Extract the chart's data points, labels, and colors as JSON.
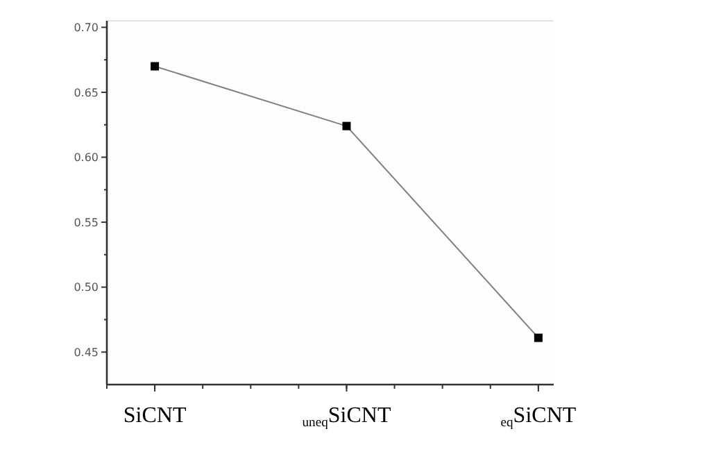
{
  "chart_data": {
    "type": "line",
    "categories": [
      "SiCNT",
      "$_{uneq}$SiCNT",
      "$_{eq}$SiCNT"
    ],
    "series": [
      {
        "color": "#000000",
        "values": [
          0.67,
          0.624,
          0.461
        ]
      }
    ],
    "ylim": [
      0.425,
      0.705
    ],
    "yticks": [
      {
        "value": 0.45,
        "label": "0.45"
      },
      {
        "value": 0.5,
        "label": "0.50"
      },
      {
        "value": 0.55,
        "label": "0.55"
      },
      {
        "value": 0.6,
        "label": "0.60"
      },
      {
        "value": 0.65,
        "label": "0.65"
      },
      {
        "value": 0.7,
        "label": "0.70"
      }
    ],
    "marker": "square",
    "line_style": "solid"
  }
}
